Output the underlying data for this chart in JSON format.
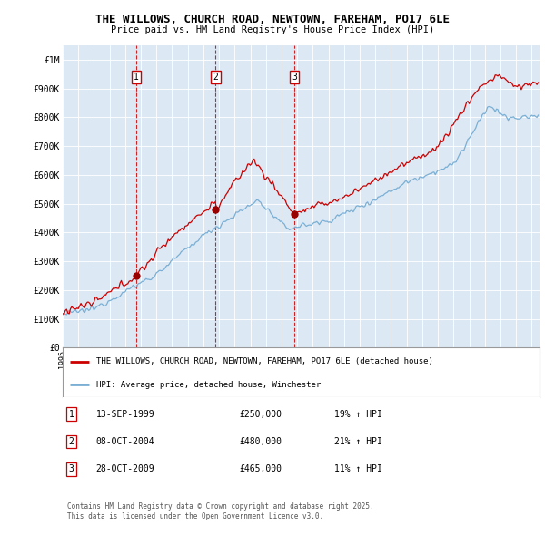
{
  "title": "THE WILLOWS, CHURCH ROAD, NEWTOWN, FAREHAM, PO17 6LE",
  "subtitle": "Price paid vs. HM Land Registry's House Price Index (HPI)",
  "house_color": "#cc0000",
  "hpi_color": "#7bafd4",
  "background_color": "#dce9f5",
  "ylim": [
    0,
    1050000
  ],
  "yticks": [
    0,
    100000,
    200000,
    300000,
    400000,
    500000,
    600000,
    700000,
    800000,
    900000,
    1000000
  ],
  "ytick_labels": [
    "£0",
    "£100K",
    "£200K",
    "£300K",
    "£400K",
    "£500K",
    "£600K",
    "£700K",
    "£800K",
    "£900K",
    "£1M"
  ],
  "legend_house": "THE WILLOWS, CHURCH ROAD, NEWTOWN, FAREHAM, PO17 6LE (detached house)",
  "legend_hpi": "HPI: Average price, detached house, Winchester",
  "transactions": [
    {
      "num": 1,
      "date": "13-SEP-1999",
      "price": 250000,
      "hpi_pct": "19% ↑ HPI",
      "x": 1999.71
    },
    {
      "num": 2,
      "date": "08-OCT-2004",
      "price": 480000,
      "hpi_pct": "21% ↑ HPI",
      "x": 2004.77
    },
    {
      "num": 3,
      "date": "28-OCT-2009",
      "price": 465000,
      "hpi_pct": "11% ↑ HPI",
      "x": 2009.82
    }
  ],
  "footnote": "Contains HM Land Registry data © Crown copyright and database right 2025.\nThis data is licensed under the Open Government Licence v3.0."
}
